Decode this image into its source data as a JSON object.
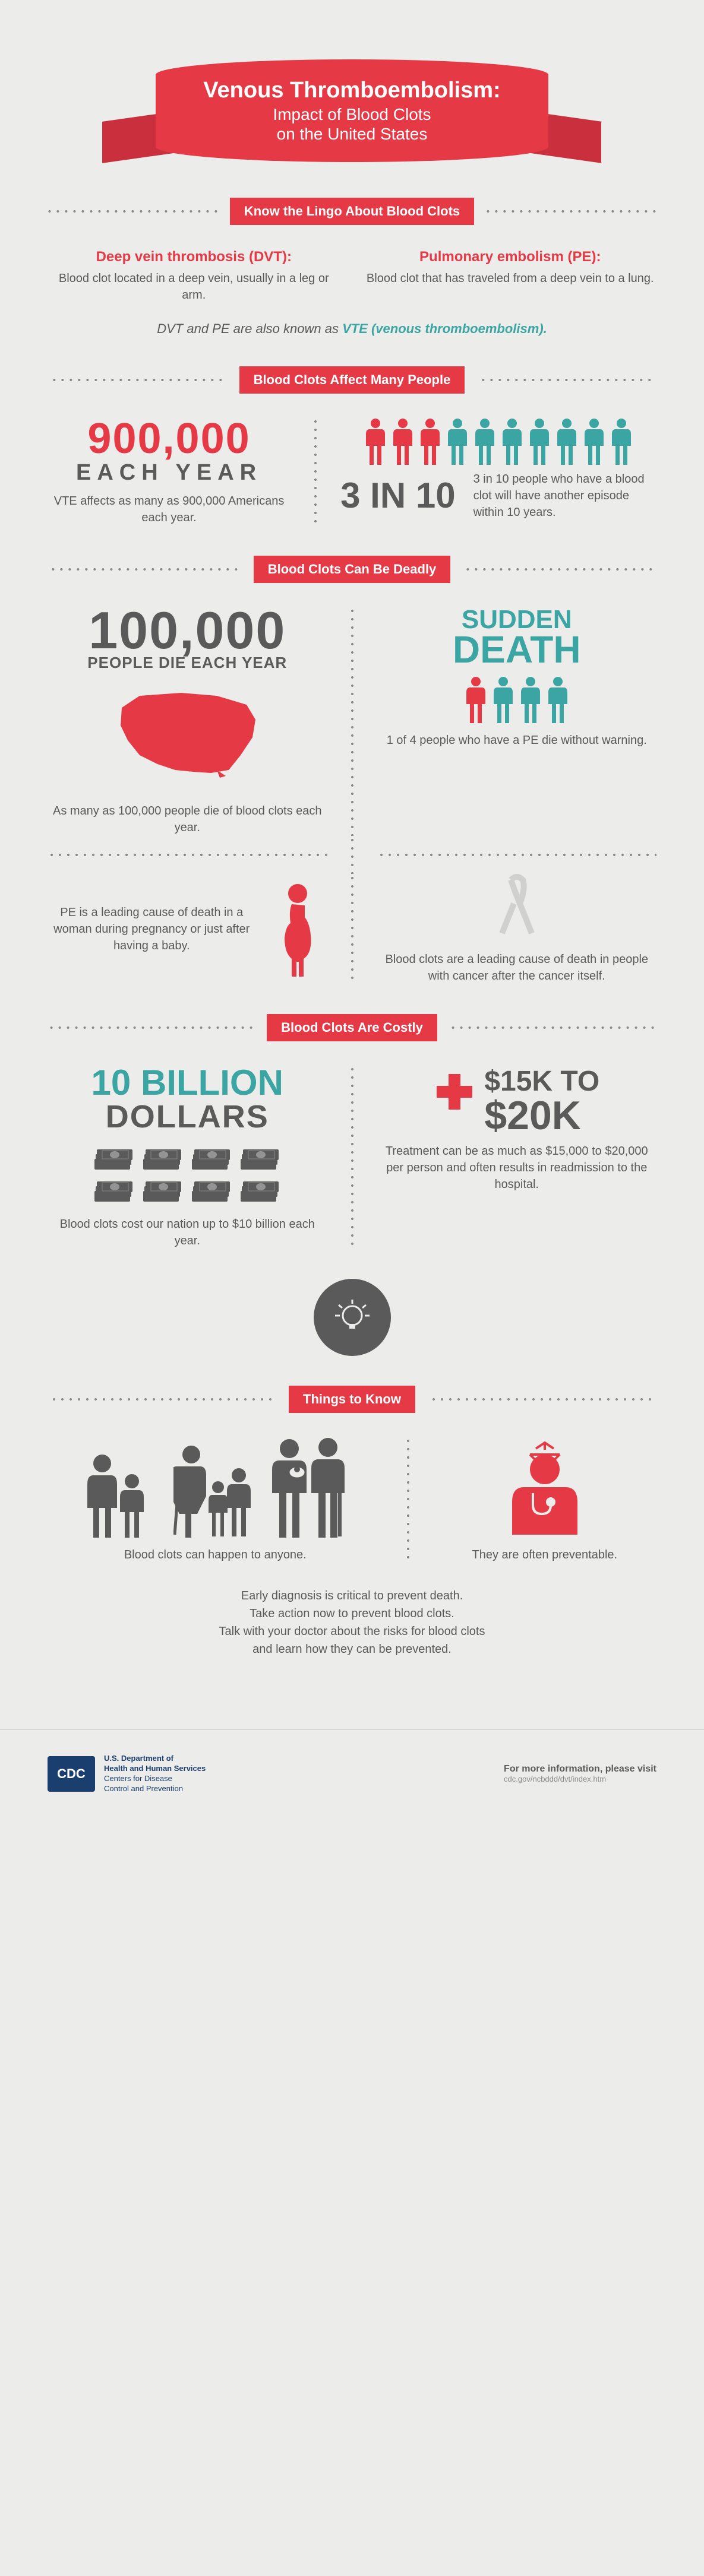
{
  "colors": {
    "red": "#e63946",
    "teal": "#3aa5a2",
    "gray": "#5a5a5a",
    "bg": "#ececea",
    "navy": "#1a3e6e"
  },
  "banner": {
    "title": "Venous Thromboembolism:",
    "subtitle1": "Impact of Blood Clots",
    "subtitle2": "on the United States"
  },
  "sections": {
    "lingo": {
      "header": "Know the Lingo About Blood Clots",
      "dvt_title": "Deep vein thrombosis (DVT):",
      "dvt_text": "Blood clot located in a deep vein, usually in a leg or arm.",
      "pe_title": "Pulmonary embolism (PE):",
      "pe_text": "Blood clot that has traveled from a deep vein to a lung.",
      "note_prefix": "DVT and PE are also known as ",
      "note_em": "VTE (venous thromboembolism)."
    },
    "affect": {
      "header": "Blood Clots Affect Many People",
      "number": "900,000",
      "each_year": "EACH   YEAR",
      "left_text": "VTE affects as many as 900,000 Americans each year.",
      "people_count": 10,
      "people_highlighted": 3,
      "ratio": "3 IN 10",
      "right_text": "3 in 10 people who have a blood clot will have another episode within 10 years."
    },
    "deadly": {
      "header": "Blood Clots Can Be Deadly",
      "hundred_k": "100,000",
      "die_year": "PEOPLE DIE EACH YEAR",
      "left_text": "As many as 100,000 people die of blood clots each year.",
      "sudden": "SUDDEN",
      "death": "DEATH",
      "people_count": 4,
      "people_highlighted": 1,
      "right_text": "1 of 4 people who have a PE die without warning.",
      "pe_text": "PE is a leading cause of death in a woman during pregnancy or just after having a baby.",
      "cancer_text": "Blood clots are a leading cause of death in people with cancer after the cancer itself."
    },
    "costly": {
      "header": "Blood Clots Are Costly",
      "ten_bil": "10 BILLION",
      "dollars": "DOLLARS",
      "cash_count": 8,
      "left_text": "Blood clots cost our nation up to $10 billion each year.",
      "k15": "$15K  TO",
      "k20": "$20K",
      "right_text": "Treatment can be as much as $15,000 to $20,000 per person and often results in readmission to the hospital."
    },
    "know": {
      "header": "Things to Know",
      "left_text": "Blood clots can happen to anyone.",
      "right_text": "They are often preventable.",
      "note1": "Early diagnosis is critical to prevent death.",
      "note2": "Take action now to prevent blood clots.",
      "note3": "Talk with your doctor about the risks for blood clots",
      "note4": "and learn how they can be prevented."
    }
  },
  "footer": {
    "cdc": "CDC",
    "dept1": "U.S. Department of",
    "dept2": "Health and Human Services",
    "dept3": "Centers for Disease",
    "dept4": "Control and Prevention",
    "more_info": "For more information, please visit",
    "url": "cdc.gov/ncbddd/dvt/index.htm"
  }
}
